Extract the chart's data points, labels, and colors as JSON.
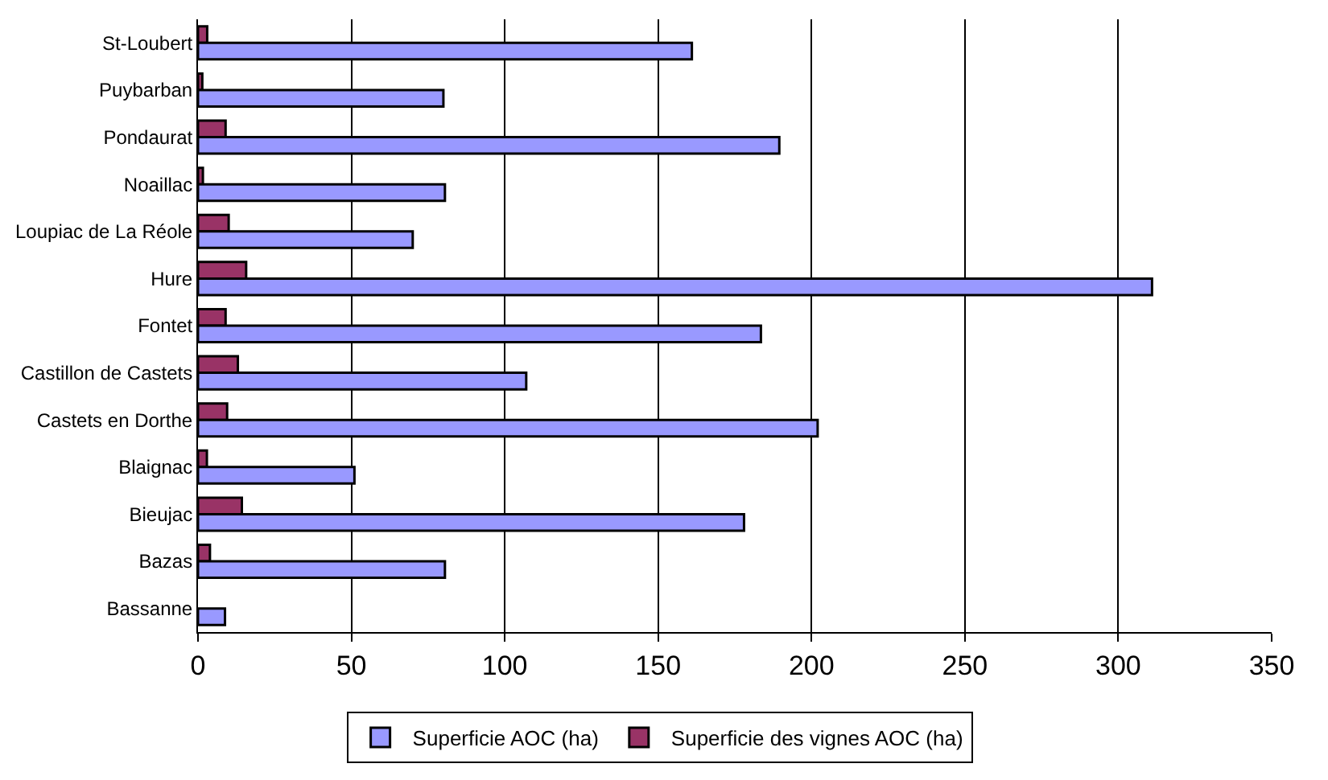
{
  "chart_data": {
    "type": "bar",
    "orientation": "horizontal",
    "categories": [
      "St-Loubert",
      "Puybarban",
      "Pondaurat",
      "Noaillac",
      "Loupiac de La Réole",
      "Hure",
      "Fontet",
      "Castillon de Castets",
      "Castets en Dorthe",
      "Blaignac",
      "Bieujac",
      "Bazas",
      "Bassanne"
    ],
    "series": [
      {
        "name": "Superficie AOC (ha)",
        "color": "#9999ff",
        "values": [
          161,
          80,
          189.5,
          80.5,
          70,
          311,
          183.5,
          107,
          202,
          51,
          178,
          80.5,
          8.8
        ]
      },
      {
        "name": "Superficie des vignes AOC (ha)",
        "color": "#993366",
        "values": [
          3,
          1.4,
          9,
          1.6,
          10,
          15.7,
          9,
          13,
          9.5,
          2.9,
          14.3,
          3.9,
          null
        ]
      }
    ],
    "xlim": [
      0,
      350
    ],
    "xticks": [
      0,
      50,
      100,
      150,
      200,
      250,
      300,
      350
    ],
    "grid": "x",
    "legend": "bottom"
  }
}
